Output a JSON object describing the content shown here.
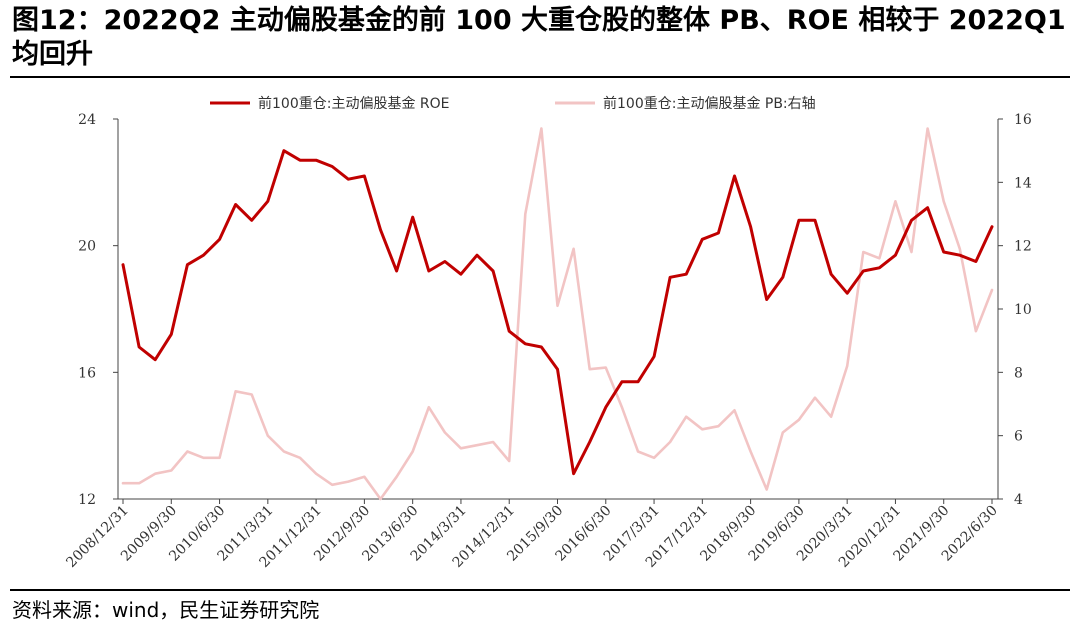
{
  "title": "图12：2022Q2 主动偏股基金的前 100 大重仓股的整体 PB、ROE 相较于 2022Q1 均回升",
  "source": "资料来源：wind，民生证券研究院",
  "chart_data": {
    "type": "line",
    "x": [
      "2008/12/31",
      "2009/3/31",
      "2009/6/30",
      "2009/9/30",
      "2009/12/31",
      "2010/3/31",
      "2010/6/30",
      "2010/9/30",
      "2010/12/31",
      "2011/3/31",
      "2011/6/30",
      "2011/9/30",
      "2011/12/31",
      "2012/3/31",
      "2012/6/30",
      "2012/9/30",
      "2012/12/31",
      "2013/3/31",
      "2013/6/30",
      "2013/9/30",
      "2013/12/31",
      "2014/3/31",
      "2014/6/30",
      "2014/9/30",
      "2014/12/31",
      "2015/3/31",
      "2015/6/30",
      "2015/9/30",
      "2015/12/31",
      "2016/3/31",
      "2016/6/30",
      "2016/9/30",
      "2016/12/31",
      "2017/3/31",
      "2017/6/30",
      "2017/9/30",
      "2017/12/31",
      "2018/3/31",
      "2018/6/30",
      "2018/9/30",
      "2018/12/31",
      "2019/3/31",
      "2019/6/30",
      "2019/9/30",
      "2019/12/31",
      "2020/3/31",
      "2020/6/30",
      "2020/9/30",
      "2020/12/31",
      "2021/3/31",
      "2021/6/30",
      "2021/9/30",
      "2021/12/31",
      "2022/3/31",
      "2022/6/30"
    ],
    "x_tick_labels": [
      "2008/12/31",
      "2009/9/30",
      "2010/6/30",
      "2011/3/31",
      "2011/12/31",
      "2012/9/30",
      "2013/6/30",
      "2014/3/31",
      "2014/12/31",
      "2015/9/30",
      "2016/6/30",
      "2017/3/31",
      "2017/12/31",
      "2018/9/30",
      "2019/6/30",
      "2020/3/31",
      "2020/12/31",
      "2021/9/30",
      "2022/6/30"
    ],
    "y_left": {
      "range": [
        12,
        24
      ],
      "ticks": [
        "12",
        "16",
        "20",
        "24"
      ]
    },
    "y_right": {
      "range": [
        4,
        16
      ],
      "ticks": [
        "4",
        "6",
        "8",
        "10",
        "12",
        "14",
        "16"
      ]
    },
    "legend_position": "top",
    "grid": false,
    "series": [
      {
        "name": "前100重仓:主动偏股基金 ROE",
        "axis": "left",
        "color": "#c00000",
        "values": [
          19.4,
          16.8,
          16.4,
          17.2,
          19.4,
          19.7,
          20.2,
          21.3,
          20.8,
          21.4,
          23.0,
          22.7,
          22.7,
          22.5,
          22.1,
          22.2,
          20.5,
          19.2,
          20.9,
          19.2,
          19.5,
          19.1,
          19.7,
          19.2,
          17.3,
          16.9,
          16.8,
          16.1,
          12.8,
          13.8,
          14.9,
          15.7,
          15.7,
          16.5,
          19.0,
          19.1,
          20.2,
          20.4,
          22.2,
          20.6,
          18.3,
          19.0,
          20.8,
          20.8,
          19.1,
          18.5,
          19.2,
          19.3,
          19.7,
          20.8,
          21.2,
          19.8,
          19.7,
          19.5,
          20.6
        ]
      },
      {
        "name": "前100重仓:主动偏股基金 PB:右轴",
        "axis": "right",
        "color": "#f2c4c4",
        "values": [
          4.5,
          4.5,
          4.8,
          4.9,
          5.5,
          5.3,
          5.3,
          7.4,
          7.3,
          6.0,
          5.5,
          5.3,
          4.8,
          4.45,
          4.55,
          4.7,
          4.0,
          4.7,
          5.5,
          6.9,
          6.1,
          5.6,
          5.7,
          5.8,
          5.2,
          13.0,
          15.7,
          10.1,
          11.9,
          8.1,
          8.15,
          6.9,
          5.5,
          5.3,
          5.8,
          6.6,
          6.2,
          6.3,
          6.8,
          5.5,
          4.3,
          6.1,
          6.5,
          7.2,
          6.6,
          8.2,
          11.8,
          11.6,
          13.4,
          11.8,
          15.7,
          13.4,
          11.9,
          9.3,
          10.6
        ]
      }
    ]
  }
}
